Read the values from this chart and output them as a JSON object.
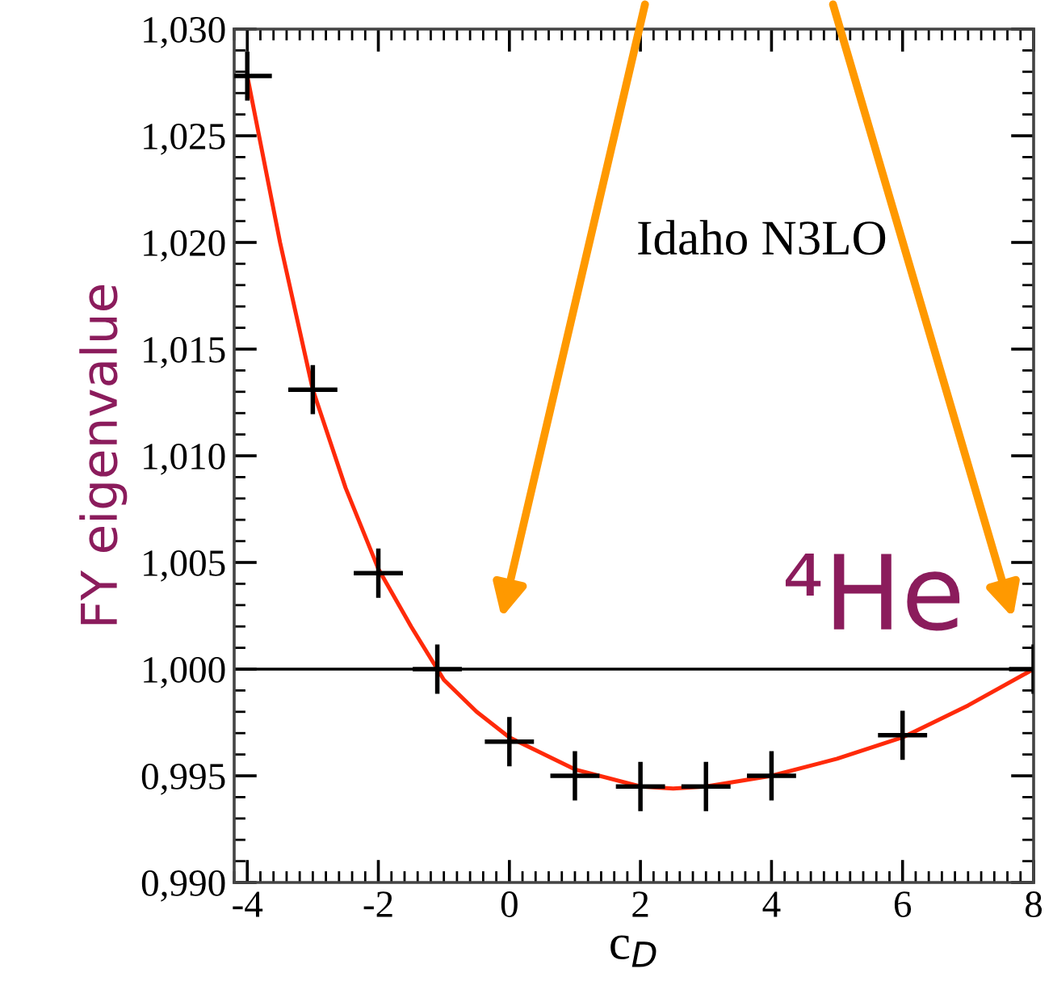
{
  "chart_data": {
    "type": "scatter",
    "xlabel": "c$_{D}$",
    "ylabel": "FY eigenvalue",
    "xlim": [
      -4.2,
      8
    ],
    "ylim": [
      0.99,
      1.03
    ],
    "xticks": [
      -4,
      -2,
      0,
      2,
      4,
      6,
      8
    ],
    "yticks": [
      {
        "value": 0.99,
        "label": "0,990"
      },
      {
        "value": 0.995,
        "label": "0,995"
      },
      {
        "value": 1.0,
        "label": "1,000"
      },
      {
        "value": 1.005,
        "label": "1,005"
      },
      {
        "value": 1.01,
        "label": "1,010"
      },
      {
        "value": 1.015,
        "label": "1,015"
      },
      {
        "value": 1.02,
        "label": "1,020"
      },
      {
        "value": 1.025,
        "label": "1,025"
      },
      {
        "value": 1.03,
        "label": "1,030"
      }
    ],
    "grid": false,
    "ref_lines": [
      {
        "axis": "y",
        "value": 1.0,
        "color": "#000000"
      }
    ],
    "annotations": [
      "Idaho N3LO",
      "⁴He"
    ],
    "series": [
      {
        "type": "line",
        "color": "#ff2a0a",
        "marker": "none",
        "line_style": "solid",
        "x": [
          -4,
          -3.5,
          -3,
          -2.5,
          -2,
          -1.5,
          -1.1,
          -1,
          -0.5,
          0,
          1,
          2,
          2.5,
          3,
          4,
          5,
          6,
          7,
          8
        ],
        "values": [
          1.0278,
          1.02,
          1.0131,
          1.0085,
          1.0047,
          1.002,
          1.0,
          0.9995,
          0.998,
          0.9968,
          0.9953,
          0.9945,
          0.9944,
          0.9945,
          0.995,
          0.9958,
          0.9968,
          0.9983,
          1.0
        ]
      },
      {
        "color": "#000000",
        "marker": "cross",
        "x": [
          -4,
          -3,
          -2,
          -1.1,
          0,
          1,
          2,
          3,
          4,
          6,
          8
        ],
        "values": [
          1.0278,
          1.0131,
          1.0045,
          1.0,
          0.9966,
          0.995,
          0.9945,
          0.9945,
          0.995,
          0.9969,
          1.0
        ]
      }
    ]
  }
}
